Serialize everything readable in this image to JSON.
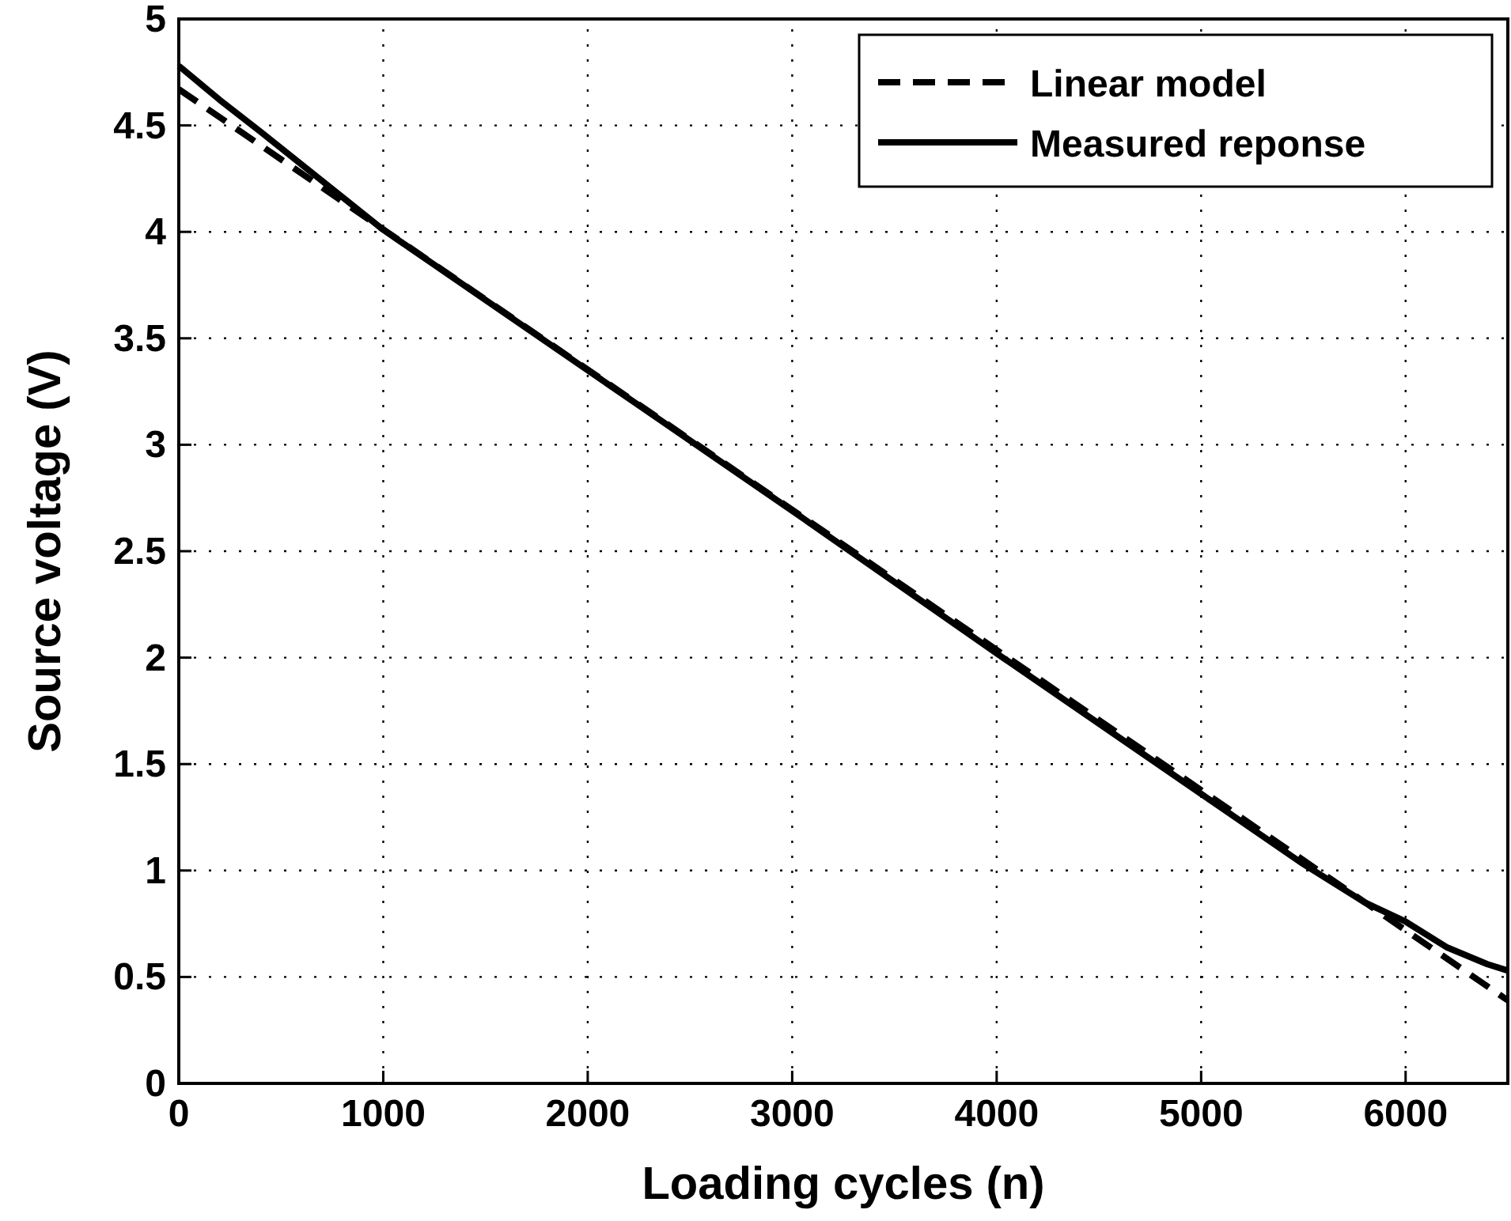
{
  "chart_data": {
    "type": "line",
    "xlabel": "Loading cycles (n)",
    "ylabel": "Source voltage (V)",
    "xlim": [
      0,
      6500
    ],
    "xticks": [
      0,
      1000,
      2000,
      3000,
      4000,
      5000,
      6000
    ],
    "ylim": [
      0,
      5
    ],
    "yticks": [
      0,
      0.5,
      1,
      1.5,
      2,
      2.5,
      3,
      3.5,
      4,
      4.5,
      5
    ],
    "grid": true,
    "legend": "top right",
    "marker": "none",
    "series": [
      {
        "name": "Linear model",
        "color": "#000000",
        "line_style": "dashed",
        "x": [
          0,
          6500
        ],
        "values": [
          4.67,
          0.39
        ]
      },
      {
        "name": "Measured reponse",
        "color": "#000000",
        "line_style": "solid",
        "x": [
          0,
          100,
          200,
          400,
          1000,
          2000,
          3000,
          4000,
          5000,
          5500,
          5800,
          6000,
          6200,
          6400,
          6500
        ],
        "values": [
          4.78,
          4.7,
          4.62,
          4.47,
          4.01,
          3.35,
          2.69,
          2.02,
          1.36,
          1.03,
          0.85,
          0.76,
          0.64,
          0.56,
          0.53
        ]
      }
    ]
  }
}
